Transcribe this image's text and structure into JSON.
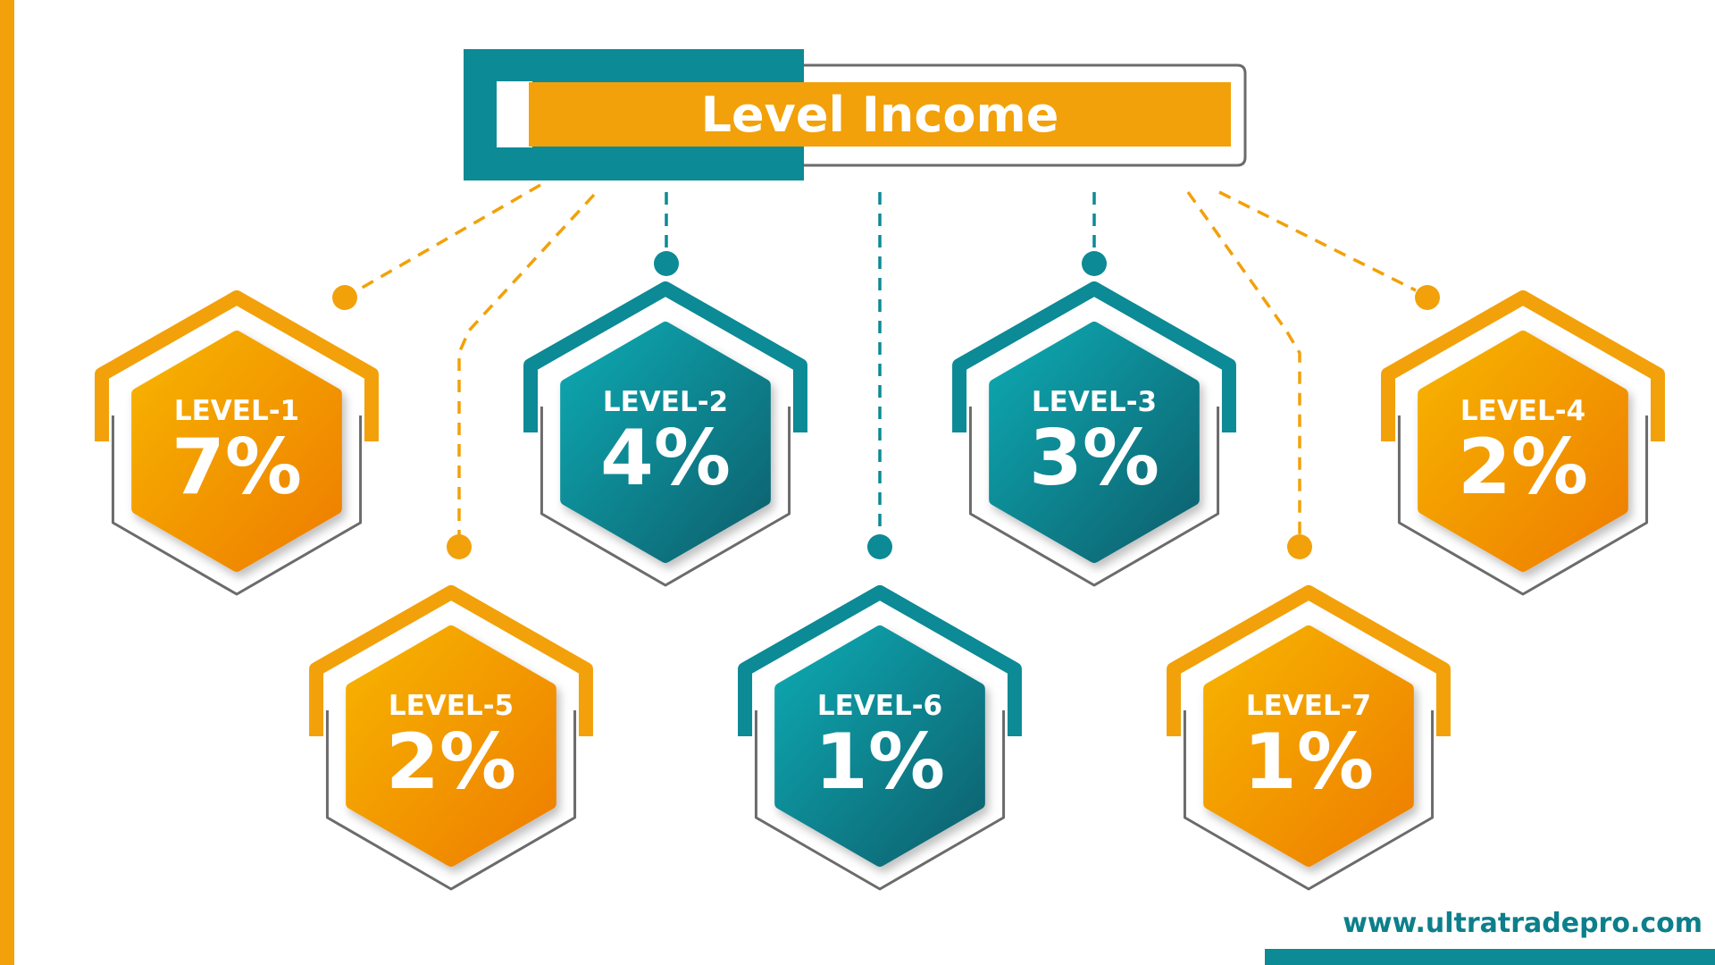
{
  "title": "Level Income",
  "website": "www.ultratradepro.com",
  "colors": {
    "orange": "#f2a10a",
    "teal": "#0c8a95",
    "grey": "#6b6b6b"
  },
  "levels": [
    {
      "label": "LEVEL-1",
      "percent": "7%",
      "color": "orange"
    },
    {
      "label": "LEVEL-2",
      "percent": "4%",
      "color": "teal"
    },
    {
      "label": "LEVEL-3",
      "percent": "3%",
      "color": "teal"
    },
    {
      "label": "LEVEL-4",
      "percent": "2%",
      "color": "orange"
    },
    {
      "label": "LEVEL-5",
      "percent": "2%",
      "color": "orange"
    },
    {
      "label": "LEVEL-6",
      "percent": "1%",
      "color": "teal"
    },
    {
      "label": "LEVEL-7",
      "percent": "1%",
      "color": "orange"
    }
  ]
}
